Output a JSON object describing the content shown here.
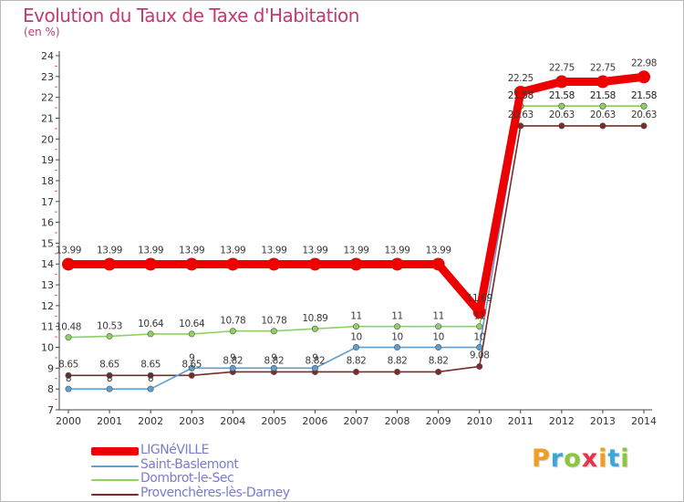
{
  "header": {
    "title": "Evolution du Taux de Taxe d'Habitation",
    "unit": "(en %)"
  },
  "logo": {
    "letters": [
      "P",
      "r",
      "o",
      "x",
      "i",
      "t",
      "i"
    ],
    "colors": [
      "#f39c1f",
      "#3aa7d8",
      "#8cc63f",
      "#e8334a",
      "#f39c1f",
      "#3aa7d8",
      "#8cc63f"
    ]
  },
  "chart_data": {
    "type": "line",
    "title": "Evolution du Taux de Taxe d'Habitation",
    "ylabel": "(en %)",
    "xlabel": "",
    "x": [
      "2000",
      "2001",
      "2002",
      "2003",
      "2004",
      "2005",
      "2006",
      "2007",
      "2008",
      "2009",
      "2010",
      "2011",
      "2012",
      "2013",
      "2014"
    ],
    "ylim": [
      7,
      24
    ],
    "yticks": [
      "7",
      "8",
      "9",
      "10",
      "11",
      "12",
      "13",
      "14",
      "15",
      "16",
      "17",
      "18",
      "19",
      "20",
      "21",
      "22",
      "23",
      "24"
    ],
    "grid": false,
    "legend_position": "bottom-left",
    "series": [
      {
        "name": "LIGNéVILLE",
        "color": "#ee0000",
        "values": [
          13.99,
          13.99,
          13.99,
          13.99,
          13.99,
          13.99,
          13.99,
          13.99,
          13.99,
          13.99,
          11.69,
          22.25,
          22.75,
          22.75,
          22.98
        ],
        "labels": [
          "13.99",
          "13.99",
          "13.99",
          "13.99",
          "13.99",
          "13.99",
          "13.99",
          "13.99",
          "13.99",
          "13.99",
          "11.69",
          "22.25",
          "22.75",
          "22.75",
          "22.98"
        ]
      },
      {
        "name": "Saint-Baslemont",
        "color": "#5f9fd0",
        "values": [
          8,
          8,
          8,
          9,
          9,
          9,
          9,
          10,
          10,
          10,
          10,
          21.58,
          21.58,
          21.58,
          21.58
        ],
        "labels": [
          "8",
          "8",
          "8",
          "9",
          "9",
          "9",
          "9",
          "10",
          "10",
          "10",
          "10",
          "21.58",
          "21.58",
          "21.58",
          "21.58"
        ]
      },
      {
        "name": "Dombrot-le-Sec",
        "color": "#8ed163",
        "values": [
          10.48,
          10.53,
          10.64,
          10.64,
          10.78,
          10.78,
          10.89,
          11,
          11,
          11,
          11,
          21.58,
          21.58,
          21.58,
          21.58
        ],
        "labels": [
          "10.48",
          "10.53",
          "10.64",
          "10.64",
          "10.78",
          "10.78",
          "10.89",
          "11",
          "11",
          "11",
          "11",
          "21.58",
          "21.58",
          "21.58",
          "21.58"
        ]
      },
      {
        "name": "Provenchères-lès-Darney",
        "color": "#7a2b2b",
        "values": [
          8.65,
          8.65,
          8.65,
          8.65,
          8.82,
          8.82,
          8.82,
          8.82,
          8.82,
          8.82,
          9.08,
          20.63,
          20.63,
          20.63,
          20.63
        ],
        "labels": [
          "8.65",
          "8.65",
          "8.65",
          "8.65",
          "8.82",
          "8.82",
          "8.82",
          "8.82",
          "8.82",
          "8.82",
          "9.08",
          "20.63",
          "20.63",
          "20.63",
          "20.63"
        ]
      }
    ]
  }
}
